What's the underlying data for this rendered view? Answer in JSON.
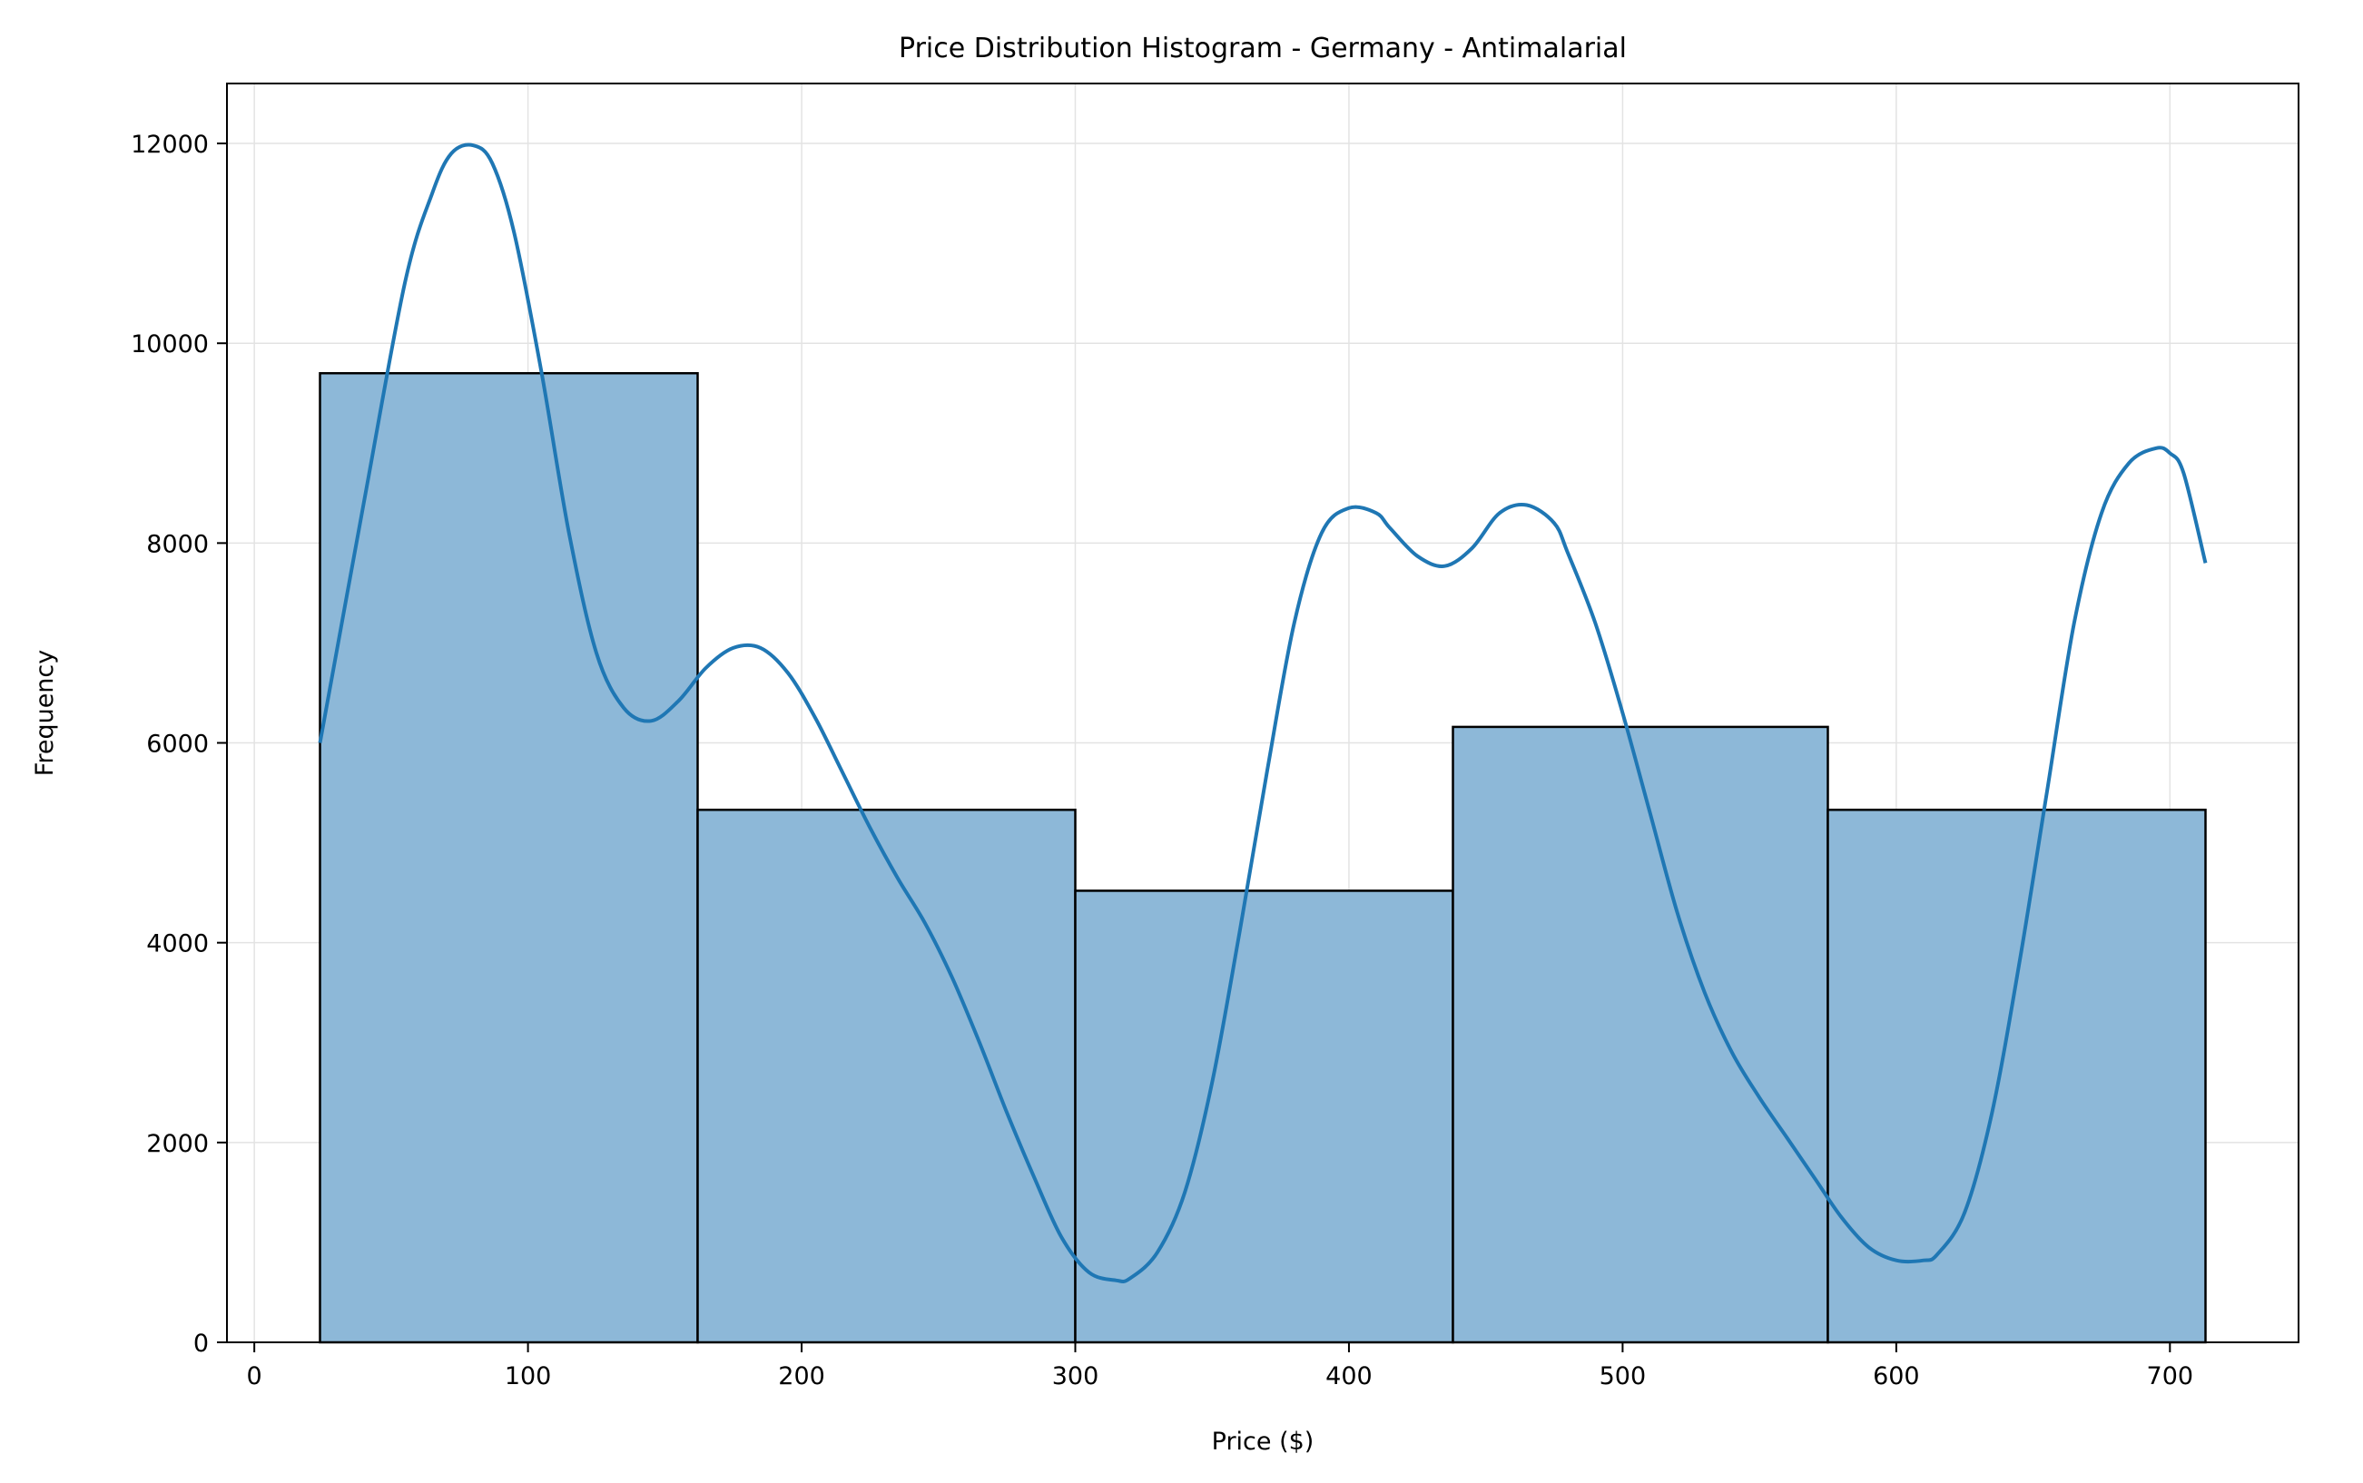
{
  "chart_data": {
    "type": "bar",
    "title": "Price Distribution Histogram - Germany - Antimalarial",
    "xlabel": "Price ($)",
    "ylabel": "Frequency",
    "xlim": [
      -10,
      747
    ],
    "ylim": [
      0,
      12600
    ],
    "xticks": [
      0,
      100,
      200,
      300,
      400,
      500,
      600,
      700
    ],
    "yticks": [
      0,
      2000,
      4000,
      6000,
      8000,
      10000,
      12000
    ],
    "grid": true,
    "bins": [
      {
        "x0": 24,
        "x1": 162,
        "count": 9700
      },
      {
        "x0": 162,
        "x1": 300,
        "count": 5330
      },
      {
        "x0": 300,
        "x1": 438,
        "count": 4520
      },
      {
        "x0": 438,
        "x1": 575,
        "count": 6160
      },
      {
        "x0": 575,
        "x1": 713,
        "count": 5330
      }
    ],
    "kde": {
      "x": [
        24,
        40,
        55,
        65,
        72,
        80,
        87,
        95,
        105,
        115,
        125,
        135,
        145,
        155,
        165,
        175,
        185,
        195,
        205,
        215,
        225,
        235,
        245,
        255,
        265,
        275,
        285,
        295,
        305,
        315,
        320,
        330,
        340,
        350,
        360,
        370,
        380,
        390,
        400,
        410,
        415,
        425,
        435,
        445,
        455,
        465,
        475,
        480,
        490,
        500,
        510,
        520,
        530,
        540,
        550,
        560,
        570,
        580,
        590,
        600,
        610,
        615,
        625,
        635,
        645,
        655,
        665,
        675,
        685,
        695,
        700,
        705,
        713
      ],
      "y": [
        6000,
        8400,
        10600,
        11500,
        11900,
        11980,
        11800,
        11100,
        9700,
        8100,
        6900,
        6350,
        6220,
        6420,
        6750,
        6950,
        6950,
        6700,
        6250,
        5700,
        5150,
        4650,
        4200,
        3650,
        3000,
        2300,
        1650,
        1050,
        700,
        620,
        640,
        900,
        1500,
        2600,
        4100,
        5700,
        7200,
        8100,
        8350,
        8300,
        8150,
        7870,
        7770,
        7950,
        8300,
        8380,
        8200,
        7900,
        7200,
        6300,
        5300,
        4300,
        3500,
        2900,
        2450,
        2050,
        1650,
        1250,
        950,
        820,
        820,
        880,
        1300,
        2300,
        3800,
        5500,
        7200,
        8300,
        8800,
        8950,
        8900,
        8700,
        7800
      ]
    },
    "colors": {
      "bar_fill": "#8db8d8",
      "bar_edge": "#000000",
      "kde_line": "#1f77b4",
      "grid": "#e3e3e3"
    }
  }
}
